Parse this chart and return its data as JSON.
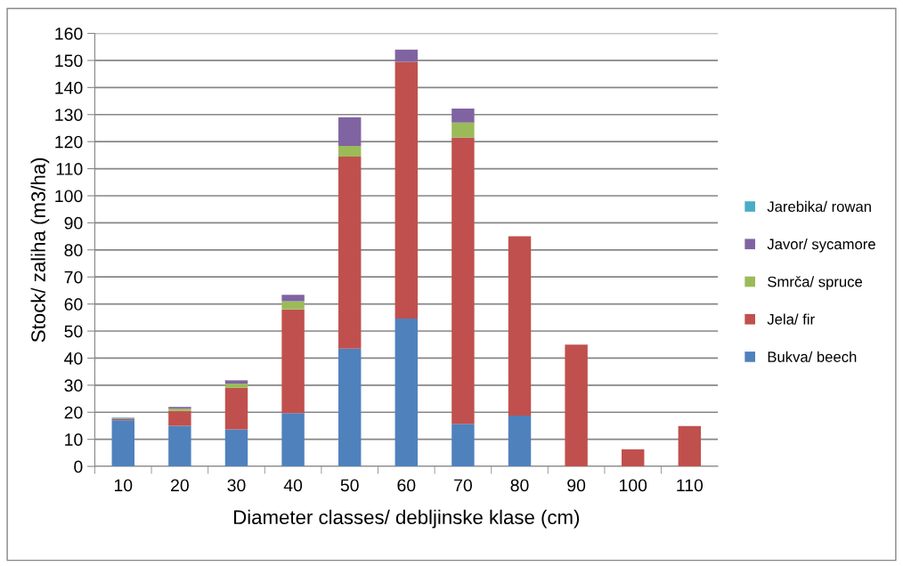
{
  "chart_data": {
    "type": "bar",
    "stacked": true,
    "xlabel": "Diameter classes/ debljinske klase (cm)",
    "ylabel": "Stock/ zaliha (m3/ha)",
    "categories": [
      "10",
      "20",
      "30",
      "40",
      "50",
      "60",
      "70",
      "80",
      "90",
      "100",
      "110"
    ],
    "series": [
      {
        "name": "Bukva/ beech",
        "color": "#4f81bd",
        "values": [
          17,
          15,
          13.7,
          19.7,
          43.5,
          54.6,
          15.7,
          18.8,
          0,
          0,
          0
        ]
      },
      {
        "name": "Jela/ fir",
        "color": "#c0504d",
        "values": [
          0.6,
          5.5,
          15.3,
          38.3,
          71,
          94.9,
          105.8,
          66.2,
          45,
          6.3,
          14.9
        ]
      },
      {
        "name": "Smrča/ spruce",
        "color": "#9bbb59",
        "values": [
          0,
          0.8,
          1.6,
          3,
          3.9,
          0,
          5.5,
          0,
          0,
          0,
          0
        ]
      },
      {
        "name": "Javor/ sycamore",
        "color": "#8064a2",
        "values": [
          0,
          0.7,
          1.2,
          2.4,
          10.6,
          4.5,
          5.2,
          0,
          0,
          0,
          0
        ]
      },
      {
        "name": "Jarebika/ rowan",
        "color": "#4bacc6",
        "values": [
          0.4,
          0,
          0,
          0,
          0,
          0,
          0,
          0,
          0,
          0,
          0
        ]
      }
    ],
    "ylim": [
      0,
      160
    ],
    "yticks": [
      0,
      10,
      20,
      30,
      40,
      50,
      60,
      70,
      80,
      90,
      100,
      110,
      120,
      130,
      140,
      150,
      160
    ],
    "grid": "y",
    "legend": "right"
  }
}
